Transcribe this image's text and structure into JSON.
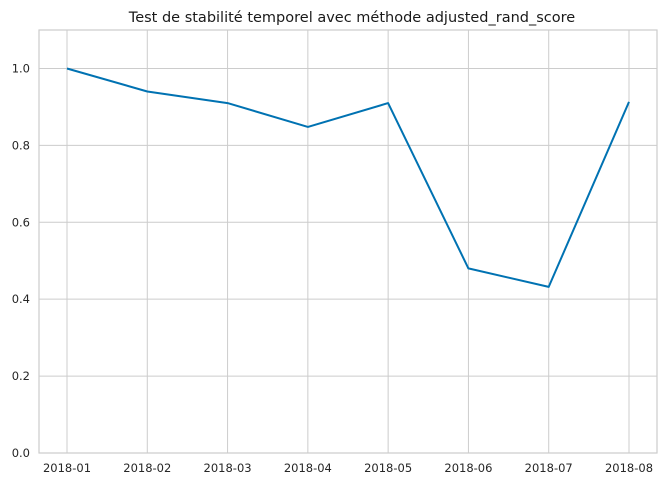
{
  "chart_data": {
    "type": "line",
    "title": "Test de stabilité temporel avec méthode adjusted_rand_score",
    "xlabel": "",
    "ylabel": "",
    "categories": [
      "2018-01",
      "2018-02",
      "2018-03",
      "2018-04",
      "2018-05",
      "2018-06",
      "2018-07",
      "2018-08"
    ],
    "series": [
      {
        "values": [
          1.0,
          0.94,
          0.91,
          0.848,
          0.91,
          0.48,
          0.432,
          0.913
        ]
      }
    ],
    "ylim": [
      0,
      1.1
    ],
    "yticks": [
      0.0,
      0.2,
      0.4,
      0.6,
      0.8,
      1.0
    ],
    "ytick_labels": [
      "0.0",
      "0.2",
      "0.4",
      "0.6",
      "0.8",
      "1.0"
    ],
    "grid": true,
    "legend": "none",
    "colors": {
      "series": "#0072b2",
      "grid": "#cccccc",
      "background": "#ffffff"
    }
  }
}
